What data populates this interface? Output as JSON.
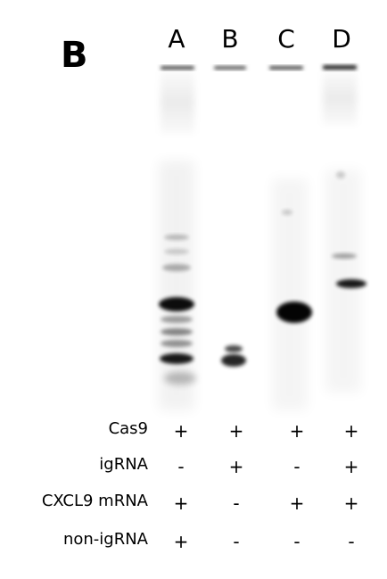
{
  "panel_label": "B",
  "lanes": [
    "A",
    "B",
    "C",
    "D"
  ],
  "conditions": [
    {
      "label": "Cas9",
      "values": [
        "+",
        "+",
        "+",
        "+"
      ]
    },
    {
      "label": "igRNA",
      "values": [
        "-",
        "+",
        "-",
        "+"
      ]
    },
    {
      "label": "CXCL9 mRNA",
      "values": [
        "+",
        "-",
        "+",
        "+"
      ]
    },
    {
      "label": "non-igRNA",
      "values": [
        "+",
        "-",
        "-",
        "-"
      ]
    }
  ]
}
